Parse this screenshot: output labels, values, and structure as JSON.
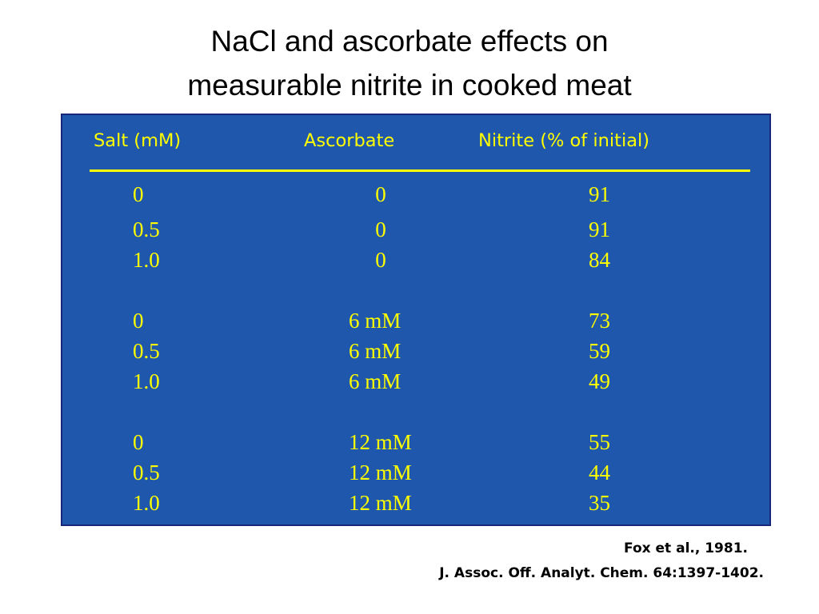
{
  "title": {
    "line1": "NaCl and ascorbate effects on",
    "line2": "measurable nitrite in cooked meat"
  },
  "table": {
    "headers": {
      "salt": "Salt (mM)",
      "ascorbate": "Ascorbate",
      "nitrite": "Nitrite (% of initial)"
    },
    "rows": [
      {
        "salt": "0",
        "ascorbate": "0",
        "nitrite": "91"
      },
      {
        "salt": "0.5",
        "ascorbate": "0",
        "nitrite": "91"
      },
      {
        "salt": "1.0",
        "ascorbate": "0",
        "nitrite": "84"
      },
      {
        "salt": "0",
        "ascorbate": "6 mM",
        "nitrite": "73"
      },
      {
        "salt": "0.5",
        "ascorbate": "6 mM",
        "nitrite": "59"
      },
      {
        "salt": "1.0",
        "ascorbate": "6 mM",
        "nitrite": "49"
      },
      {
        "salt": "0",
        "ascorbate": "12 mM",
        "nitrite": "55"
      },
      {
        "salt": "0.5",
        "ascorbate": "12 mM",
        "nitrite": "44"
      },
      {
        "salt": "1.0",
        "ascorbate": "12 mM",
        "nitrite": "35"
      }
    ]
  },
  "citation": {
    "line1": "Fox et al., 1981.",
    "line2": "J. Assoc. Off. Analyt. Chem. 64:1397-1402."
  },
  "colors": {
    "panel_background": "#1f57ad",
    "panel_border": "#18277a",
    "table_text": "#ffff00",
    "title_text": "#000000"
  }
}
